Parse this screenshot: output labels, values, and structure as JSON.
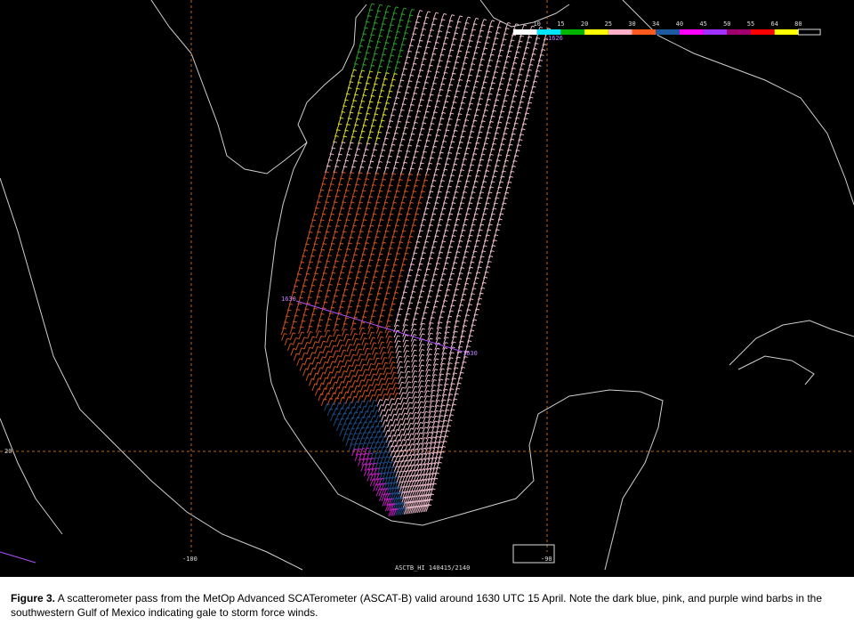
{
  "legend": [
    {
      "label": "10",
      "color": "#ffffff"
    },
    {
      "label": "15",
      "color": "#00e5ff"
    },
    {
      "label": "20",
      "color": "#00b400"
    },
    {
      "label": "25",
      "color": "#ffff00"
    },
    {
      "label": "30",
      "color": "#ffb0c8"
    },
    {
      "label": "34",
      "color": "#ff5a1e"
    },
    {
      "label": "40",
      "color": "#1e5aa0"
    },
    {
      "label": "45",
      "color": "#ff00ff"
    },
    {
      "label": "50",
      "color": "#a030ff"
    },
    {
      "label": "55",
      "color": "#a0006e"
    },
    {
      "label": "64",
      "color": "#ff0000"
    },
    {
      "label": "80",
      "color": "#ffff00"
    }
  ],
  "grid_labels": {
    "lon_left": "-100",
    "lon_right": "-90",
    "lat": "20"
  },
  "pass_times": {
    "west": "1630",
    "east": "1630",
    "north": "1626"
  },
  "product_label": "ASCTB_HI 140415/2140",
  "caption": {
    "label": "Figure 3.",
    "text": "A scatterometer pass from the MetOp Advanced SCATerometer (ASCAT-B) valid around 1630 UTC 15 April. Note the dark blue, pink, and purple wind barbs in the southwestern Gulf of Mexico indicating gale to storm force winds."
  }
}
